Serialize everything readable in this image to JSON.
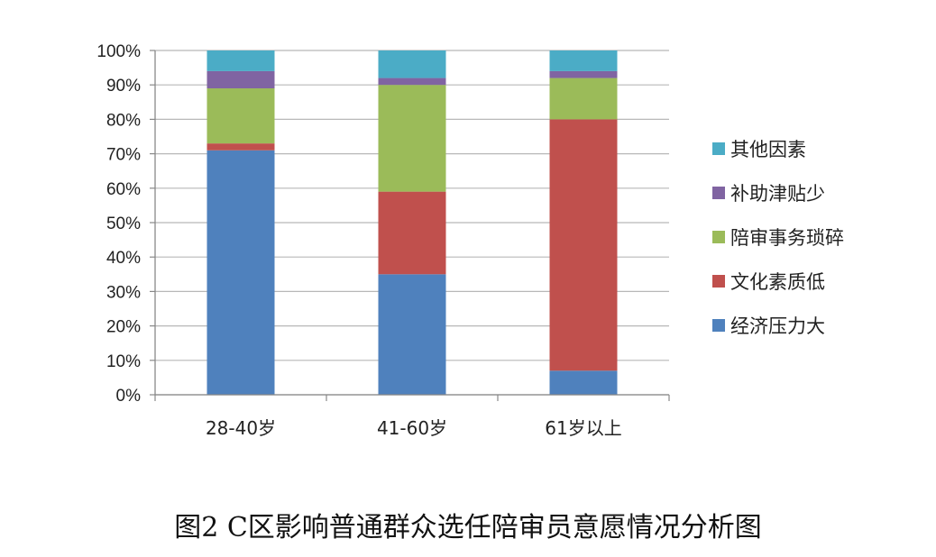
{
  "caption": "图2 C区影响普通群众选任陪审员意愿情况分析图",
  "chart_data": {
    "type": "bar",
    "stacked": true,
    "title": "",
    "xlabel": "",
    "ylabel": "",
    "ylim": [
      0,
      100
    ],
    "yticks": [
      "0%",
      "10%",
      "20%",
      "30%",
      "40%",
      "50%",
      "60%",
      "70%",
      "80%",
      "90%",
      "100%"
    ],
    "grid": true,
    "legend_position": "right",
    "categories": [
      "28-40岁",
      "41-60岁",
      "61岁以上"
    ],
    "series": [
      {
        "name": "经济压力大",
        "color": "#4f81bd",
        "values": [
          71,
          35,
          7
        ]
      },
      {
        "name": "文化素质低",
        "color": "#c0504d",
        "values": [
          2,
          24,
          73
        ]
      },
      {
        "name": "陪审事务琐碎",
        "color": "#9bbb59",
        "values": [
          16,
          31,
          12
        ]
      },
      {
        "name": "补助津贴少",
        "color": "#8064a2",
        "values": [
          5,
          2,
          2
        ]
      },
      {
        "name": "其他因素",
        "color": "#4bacc6",
        "values": [
          6,
          8,
          6
        ]
      }
    ]
  }
}
